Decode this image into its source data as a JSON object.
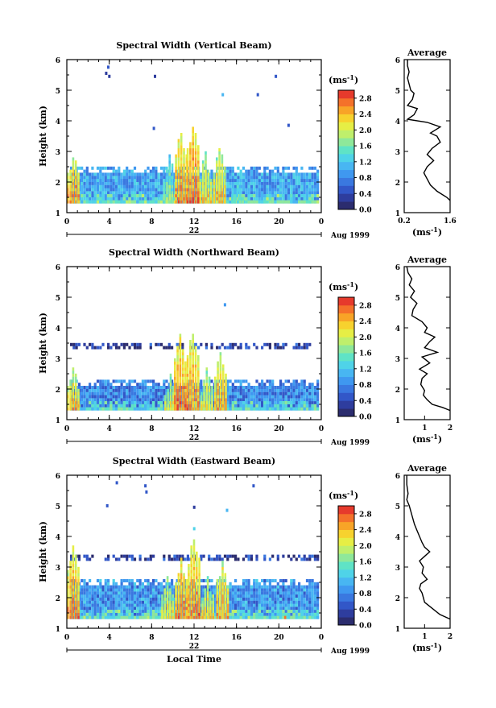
{
  "chart_data": [
    {
      "type": "heatmap",
      "title": "Spectral Width (Vertical Beam)",
      "xlabel": "",
      "ylabel": "Height (km)",
      "xticks": [
        "0",
        "4",
        "8",
        "12",
        "16",
        "20",
        "0"
      ],
      "yticks": [
        "1",
        "2",
        "3",
        "4",
        "5",
        "6"
      ],
      "xlim": [
        0,
        24
      ],
      "ylim": [
        1,
        6
      ],
      "day_label": "22",
      "date_label": "Aug 1999",
      "colorbar": {
        "unit": "(ms",
        "unit_sup": "-1",
        "unit_close": ")",
        "ticks": [
          "0.0",
          "0.4",
          "0.8",
          "1.2",
          "1.6",
          "2.0",
          "2.4",
          "2.8"
        ],
        "range": [
          0,
          3.0
        ]
      },
      "echo_layers": [
        {
          "from": 1.3,
          "to": 2.5,
          "start": 0.3,
          "end": 23.7,
          "value": 1.0
        },
        {
          "from": 1.3,
          "to": 1.6,
          "start": 0.3,
          "end": 23.7,
          "value": 1.5
        }
      ],
      "plumes": [
        {
          "x": 0.5,
          "top": 3.0,
          "value": 2.6
        },
        {
          "x": 9.6,
          "top": 2.9,
          "value": 1.8
        },
        {
          "x": 10.7,
          "top": 3.7,
          "value": 2.6
        },
        {
          "x": 11.8,
          "top": 3.9,
          "value": 2.7
        },
        {
          "x": 13.0,
          "top": 3.0,
          "value": 2.3
        },
        {
          "x": 14.3,
          "top": 3.2,
          "value": 2.4
        },
        {
          "x": 16.0,
          "top": 2.3,
          "value": 1.6
        },
        {
          "x": 21.0,
          "top": 1.5,
          "value": 2.7
        }
      ],
      "outliers": [
        {
          "x": 3.8,
          "y": 5.7,
          "value": 0.5
        },
        {
          "x": 3.6,
          "y": 5.5,
          "value": 0.3
        },
        {
          "x": 3.9,
          "y": 5.4,
          "value": 0.3
        },
        {
          "x": 8.2,
          "y": 5.4,
          "value": 0.3
        },
        {
          "x": 8.1,
          "y": 3.7,
          "value": 0.4
        },
        {
          "x": 14.6,
          "y": 4.8,
          "value": 1.1
        },
        {
          "x": 17.9,
          "y": 4.8,
          "value": 0.5
        },
        {
          "x": 19.6,
          "y": 5.4,
          "value": 0.4
        },
        {
          "x": 20.8,
          "y": 3.8,
          "value": 0.4
        }
      ]
    },
    {
      "type": "line",
      "title": "Average",
      "xlabel_unit": "(ms",
      "xlabel_sup": "-1",
      "xlabel_close": ")",
      "xticks": [
        "0.2",
        "1.6"
      ],
      "xlim": [
        0.2,
        1.6
      ],
      "yticks": [
        "1",
        "2",
        "3",
        "4",
        "5",
        "6"
      ],
      "ylim": [
        1,
        6
      ],
      "x": [
        0.3,
        0.3,
        0.35,
        0.3,
        0.35,
        0.4,
        0.5,
        0.45,
        0.3,
        0.6,
        0.5,
        0.3,
        0.9,
        1.3,
        1.0,
        1.2,
        1.3,
        1.05,
        0.9,
        1.1,
        0.9,
        0.8,
        0.9,
        1.0,
        1.2,
        1.5,
        1.6
      ],
      "y": [
        6.0,
        5.8,
        5.6,
        5.4,
        5.2,
        5.0,
        4.9,
        4.7,
        4.5,
        4.4,
        4.2,
        4.05,
        3.95,
        3.8,
        3.6,
        3.5,
        3.3,
        3.1,
        2.9,
        2.7,
        2.5,
        2.3,
        2.1,
        1.9,
        1.7,
        1.5,
        1.4
      ]
    },
    {
      "type": "heatmap",
      "title": "Spectral Width (Northward Beam)",
      "xlabel": "",
      "ylabel": "Height (km)",
      "xticks": [
        "0",
        "4",
        "8",
        "12",
        "16",
        "20",
        "0"
      ],
      "yticks": [
        "1",
        "2",
        "3",
        "4",
        "5",
        "6"
      ],
      "xlim": [
        0,
        24
      ],
      "ylim": [
        1,
        6
      ],
      "day_label": "22",
      "date_label": "Aug 1999",
      "colorbar": {
        "unit": "(ms",
        "unit_sup": "-1",
        "unit_close": ")",
        "ticks": [
          "0.0",
          "0.4",
          "0.8",
          "1.2",
          "1.6",
          "2.0",
          "2.4",
          "2.8"
        ],
        "range": [
          0,
          3.0
        ]
      },
      "echo_layers": [
        {
          "from": 1.3,
          "to": 2.3,
          "start": 0.3,
          "end": 23.7,
          "value": 0.8
        },
        {
          "from": 1.3,
          "to": 1.6,
          "start": 0.3,
          "end": 23.7,
          "value": 1.4
        },
        {
          "from": 3.3,
          "to": 3.45,
          "start": 0.3,
          "end": 23.0,
          "value": 0.3
        }
      ],
      "plumes": [
        {
          "x": 0.5,
          "top": 2.8,
          "value": 2.4
        },
        {
          "x": 9.7,
          "top": 2.5,
          "value": 2.2
        },
        {
          "x": 10.6,
          "top": 3.8,
          "value": 2.7
        },
        {
          "x": 11.8,
          "top": 3.9,
          "value": 2.6
        },
        {
          "x": 13.1,
          "top": 2.8,
          "value": 2.2
        },
        {
          "x": 14.4,
          "top": 3.2,
          "value": 2.5
        },
        {
          "x": 21.5,
          "top": 1.4,
          "value": 2.7
        }
      ],
      "outliers": [
        {
          "x": 14.8,
          "y": 4.7,
          "value": 0.8
        }
      ]
    },
    {
      "type": "line",
      "title": "Average",
      "xlabel_unit": "(ms",
      "xlabel_sup": "-1",
      "xlabel_close": ")",
      "xticks": [
        "1",
        "2"
      ],
      "xlim": [
        0.2,
        2.0
      ],
      "yticks": [
        "1",
        "2",
        "3",
        "4",
        "5",
        "6"
      ],
      "ylim": [
        1,
        6
      ],
      "x": [
        0.3,
        0.35,
        0.5,
        0.4,
        0.6,
        0.45,
        0.7,
        0.55,
        0.5,
        0.9,
        1.1,
        1.0,
        1.4,
        1.2,
        1.0,
        1.5,
        0.9,
        1.2,
        0.8,
        1.1,
        0.9,
        0.85,
        1.0,
        0.95,
        1.1,
        1.3,
        1.7,
        2.0
      ],
      "y": [
        6.0,
        5.8,
        5.6,
        5.4,
        5.2,
        5.0,
        4.8,
        4.6,
        4.4,
        4.2,
        4.0,
        3.85,
        3.7,
        3.55,
        3.35,
        3.2,
        3.05,
        2.85,
        2.65,
        2.5,
        2.35,
        2.15,
        1.95,
        1.8,
        1.65,
        1.5,
        1.4,
        1.3
      ]
    },
    {
      "type": "heatmap",
      "title": "Spectral Width (Eastward Beam)",
      "xlabel": "Local Time",
      "ylabel": "Height (km)",
      "xticks": [
        "0",
        "4",
        "8",
        "12",
        "16",
        "20",
        "0"
      ],
      "yticks": [
        "1",
        "2",
        "3",
        "4",
        "5",
        "6"
      ],
      "xlim": [
        0,
        24
      ],
      "ylim": [
        1,
        6
      ],
      "day_label": "22",
      "date_label": "Aug 1999",
      "colorbar": {
        "unit": "(ms",
        "unit_sup": "-1",
        "unit_close": ")",
        "ticks": [
          "0.0",
          "0.4",
          "0.8",
          "1.2",
          "1.6",
          "2.0",
          "2.4",
          "2.8"
        ],
        "range": [
          0,
          3.0
        ]
      },
      "echo_layers": [
        {
          "from": 1.3,
          "to": 2.6,
          "start": 0.3,
          "end": 23.7,
          "value": 0.9
        },
        {
          "from": 1.3,
          "to": 1.6,
          "start": 0.3,
          "end": 23.7,
          "value": 1.5
        },
        {
          "from": 3.2,
          "to": 3.35,
          "start": 0.3,
          "end": 23.7,
          "value": 0.35
        }
      ],
      "plumes": [
        {
          "x": 0.5,
          "top": 3.7,
          "value": 2.6
        },
        {
          "x": 9.4,
          "top": 2.9,
          "value": 2.2
        },
        {
          "x": 10.7,
          "top": 3.3,
          "value": 2.6
        },
        {
          "x": 11.9,
          "top": 4.0,
          "value": 2.6
        },
        {
          "x": 13.2,
          "top": 2.8,
          "value": 2.3
        },
        {
          "x": 14.6,
          "top": 3.3,
          "value": 2.5
        },
        {
          "x": 20.5,
          "top": 1.5,
          "value": 2.7
        },
        {
          "x": 22.0,
          "top": 1.5,
          "value": 2.8
        }
      ],
      "outliers": [
        {
          "x": 4.6,
          "y": 5.7,
          "value": 0.5
        },
        {
          "x": 7.3,
          "y": 5.6,
          "value": 0.5
        },
        {
          "x": 7.4,
          "y": 5.4,
          "value": 0.6
        },
        {
          "x": 3.7,
          "y": 4.95,
          "value": 0.4
        },
        {
          "x": 11.9,
          "y": 4.9,
          "value": 0.3
        },
        {
          "x": 11.9,
          "y": 4.2,
          "value": 1.4
        },
        {
          "x": 15.0,
          "y": 4.8,
          "value": 1.2
        },
        {
          "x": 17.5,
          "y": 5.6,
          "value": 0.5
        }
      ]
    },
    {
      "type": "line",
      "title": "Average",
      "xlabel_unit": "(ms",
      "xlabel_sup": "-1",
      "xlabel_close": ")",
      "xticks": [
        "1",
        "2"
      ],
      "xlim": [
        0.2,
        2.0
      ],
      "yticks": [
        "1",
        "2",
        "3",
        "4",
        "5",
        "6"
      ],
      "ylim": [
        1,
        6
      ],
      "x": [
        0.3,
        0.3,
        0.35,
        0.3,
        0.4,
        0.5,
        0.6,
        0.7,
        0.8,
        0.9,
        1.0,
        1.2,
        1.0,
        0.8,
        0.95,
        0.9,
        1.1,
        0.85,
        0.8,
        0.9,
        0.95,
        1.0,
        1.3,
        1.6,
        2.0
      ],
      "y": [
        6.0,
        5.7,
        5.4,
        5.2,
        5.0,
        4.7,
        4.4,
        4.2,
        4.0,
        3.8,
        3.65,
        3.5,
        3.35,
        3.2,
        3.0,
        2.8,
        2.6,
        2.45,
        2.3,
        2.15,
        2.0,
        1.85,
        1.65,
        1.45,
        1.3
      ]
    }
  ]
}
